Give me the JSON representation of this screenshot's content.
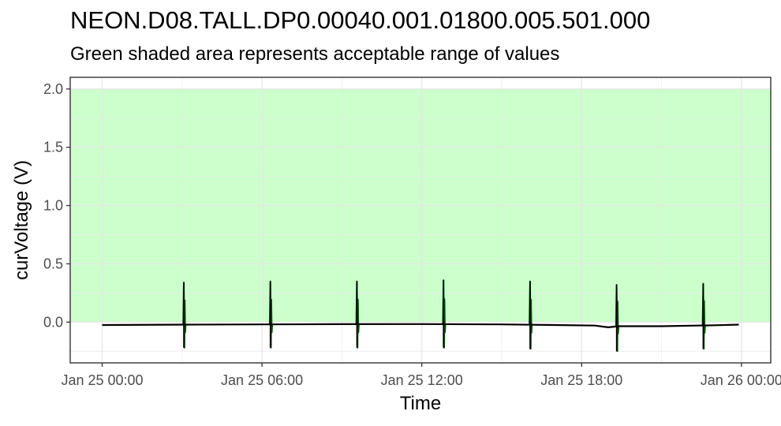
{
  "title": "NEON.D08.TALL.DP0.00040.001.01800.005.501.000",
  "subtitle": "Green shaded area represents acceptable range of values",
  "chart_data": {
    "type": "line",
    "xlabel": "Time",
    "ylabel": "curVoltage (V)",
    "x_unit": "hours since Jan 25 00:00",
    "xlim": [
      -1.2,
      25.1
    ],
    "ylim": [
      -0.35,
      2.1
    ],
    "x_ticks": [
      0,
      6,
      12,
      18,
      24
    ],
    "x_tick_labels": [
      "Jan 25 00:00",
      "Jan 25 06:00",
      "Jan 25 12:00",
      "Jan 25 18:00",
      "Jan 26 00:00"
    ],
    "y_ticks": [
      0,
      0.5,
      1,
      1.5,
      2
    ],
    "y_tick_labels": [
      "0.0",
      "0.5",
      "1.0",
      "1.5",
      "2.0"
    ],
    "acceptable_range": [
      0,
      2
    ],
    "acceptable_range_color": "#ccffcc",
    "line_color": "#000000",
    "spike_color": "#004d00",
    "grid": true,
    "series": [
      {
        "baseline": [
          {
            "x": 0,
            "y": -0.025
          },
          {
            "x": 3,
            "y": -0.022
          },
          {
            "x": 6,
            "y": -0.02
          },
          {
            "x": 9,
            "y": -0.018
          },
          {
            "x": 12,
            "y": -0.017
          },
          {
            "x": 15,
            "y": -0.02
          },
          {
            "x": 17,
            "y": -0.025
          },
          {
            "x": 18.5,
            "y": -0.03
          },
          {
            "x": 19,
            "y": -0.045
          },
          {
            "x": 19.4,
            "y": -0.035
          },
          {
            "x": 21,
            "y": -0.035
          },
          {
            "x": 23,
            "y": -0.027
          },
          {
            "x": 23.9,
            "y": -0.022
          }
        ],
        "spikes": [
          {
            "x": 3.1,
            "max": 0.34,
            "min": -0.22
          },
          {
            "x": 6.35,
            "max": 0.35,
            "min": -0.22
          },
          {
            "x": 9.6,
            "max": 0.35,
            "min": -0.22
          },
          {
            "x": 12.85,
            "max": 0.36,
            "min": -0.22
          },
          {
            "x": 16.1,
            "max": 0.35,
            "min": -0.23
          },
          {
            "x": 19.35,
            "max": 0.32,
            "min": -0.25
          },
          {
            "x": 22.6,
            "max": 0.33,
            "min": -0.23
          }
        ]
      }
    ]
  }
}
